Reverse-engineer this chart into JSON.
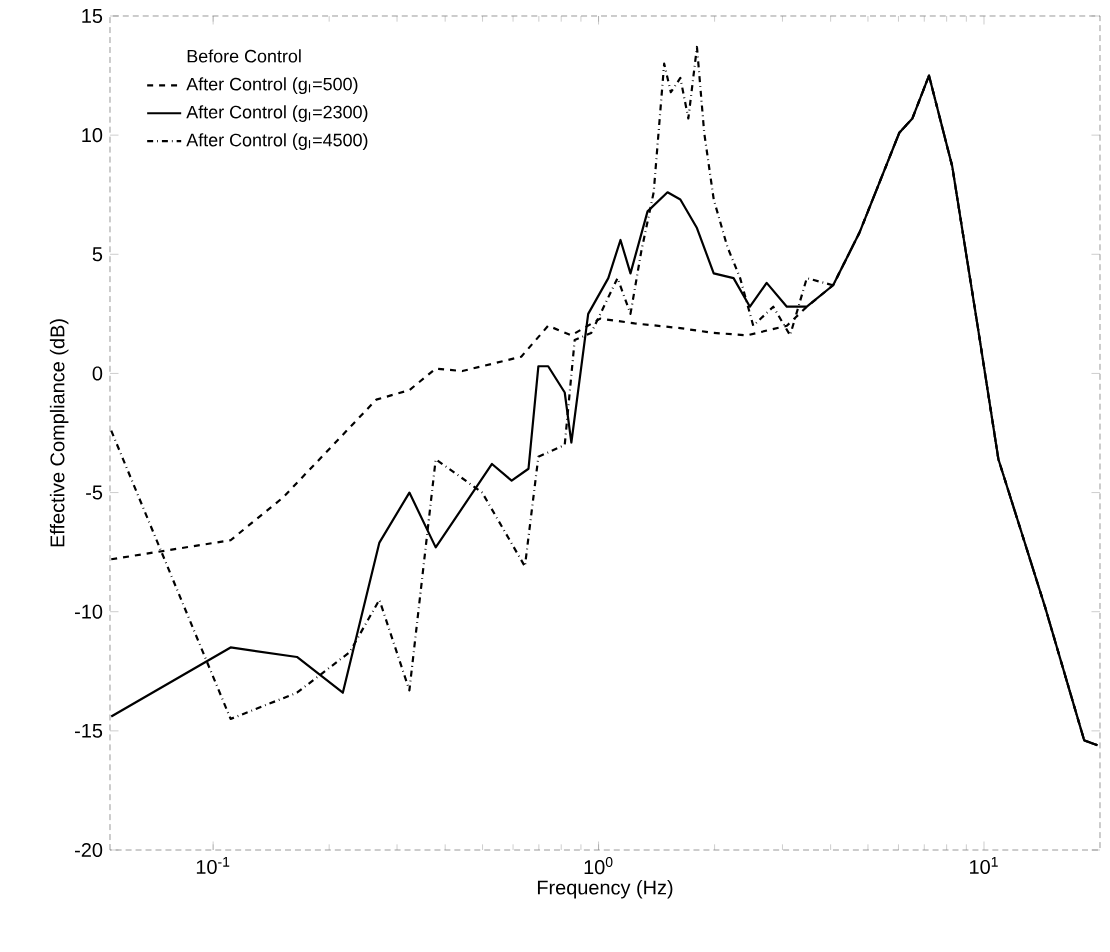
{
  "chart_data": {
    "type": "line",
    "xlabel": "Frequency (Hz)",
    "ylabel": "Effective Compliance (dB)",
    "legend_title": "Before Control",
    "legend": "top left",
    "log": "x",
    "xlim": [
      0.054,
      20
    ],
    "ylim": [
      -20,
      15
    ],
    "xticks": [
      {
        "value": 0.1,
        "label": "10$^{-1}$"
      },
      {
        "value": 1,
        "label": "10$^{0}$"
      },
      {
        "value": 10,
        "label": "10$^{1}$"
      }
    ],
    "yticks": [
      -20,
      -15,
      -10,
      -5,
      0,
      5,
      10,
      15
    ],
    "series": [
      {
        "name": "After Control (g$_{I}$=500)",
        "color": "#000000",
        "line_style": "dashed",
        "x": [
          0.0544,
          0.111,
          0.152,
          0.265,
          0.323,
          0.378,
          0.443,
          0.63,
          0.74,
          0.85,
          1.01,
          1.24,
          1.63,
          1.99,
          2.43,
          3.08,
          3.47,
          4.06,
          4.75,
          6.03,
          6.52,
          7.2,
          8.27,
          9.69,
          10.9,
          14.4,
          18.2,
          19.7
        ],
        "values": [
          -7.8,
          -7.0,
          -5.2,
          -1.1,
          -0.7,
          0.2,
          0.1,
          0.7,
          2.0,
          1.6,
          2.3,
          2.1,
          1.9,
          1.7,
          1.6,
          2.0,
          2.8,
          3.7,
          5.9,
          10.1,
          10.7,
          12.5,
          8.7,
          1.7,
          -3.6,
          -9.8,
          -15.4,
          -15.6
        ]
      },
      {
        "name": "After Control (g$_{I}$=2300)",
        "color": "#000000",
        "line_style": "solid",
        "x": [
          0.0544,
          0.111,
          0.165,
          0.217,
          0.27,
          0.323,
          0.378,
          0.529,
          0.595,
          0.658,
          0.698,
          0.74,
          0.817,
          0.85,
          0.94,
          1.06,
          1.14,
          1.21,
          1.34,
          1.51,
          1.63,
          1.8,
          1.99,
          2.24,
          2.47,
          2.73,
          3.08,
          3.47,
          4.06,
          4.75,
          6.03,
          6.52,
          7.2,
          8.27,
          9.69,
          10.9,
          14.4,
          18.2,
          19.7
        ],
        "values": [
          -14.4,
          -11.5,
          -11.9,
          -13.4,
          -7.1,
          -5.0,
          -7.3,
          -3.8,
          -4.5,
          -4.0,
          0.3,
          0.3,
          -0.8,
          -2.9,
          2.5,
          4.0,
          5.6,
          4.2,
          6.8,
          7.6,
          7.3,
          6.1,
          4.2,
          4.0,
          2.8,
          3.8,
          2.8,
          2.8,
          3.7,
          5.9,
          10.1,
          10.7,
          12.5,
          8.7,
          1.7,
          -3.6,
          -9.8,
          -15.4,
          -15.6
        ]
      },
      {
        "name": "After Control (g$_{I}$=4500)",
        "color": "#000000",
        "line_style": "dashdot",
        "x": [
          0.0544,
          0.111,
          0.165,
          0.226,
          0.27,
          0.323,
          0.378,
          0.499,
          0.644,
          0.698,
          0.817,
          0.867,
          0.957,
          1.12,
          1.21,
          1.29,
          1.39,
          1.48,
          1.54,
          1.63,
          1.71,
          1.8,
          1.88,
          1.99,
          2.16,
          2.33,
          2.52,
          2.84,
          3.14,
          3.47,
          4.06,
          4.75,
          6.03,
          6.52,
          7.2,
          8.27,
          9.69,
          10.9,
          14.4,
          18.2,
          19.7
        ],
        "values": [
          -2.4,
          -14.5,
          -13.4,
          -11.7,
          -9.5,
          -13.3,
          -3.6,
          -5.0,
          -8.1,
          -3.5,
          -3.0,
          1.4,
          1.7,
          4.0,
          2.5,
          5.1,
          7.6,
          13.0,
          11.8,
          12.4,
          10.7,
          13.7,
          10.1,
          7.3,
          5.3,
          4.0,
          2.0,
          2.8,
          1.6,
          4.0,
          3.7,
          5.9,
          10.1,
          10.7,
          12.5,
          8.7,
          1.7,
          -3.6,
          -9.8,
          -15.4,
          -15.6
        ]
      }
    ]
  }
}
